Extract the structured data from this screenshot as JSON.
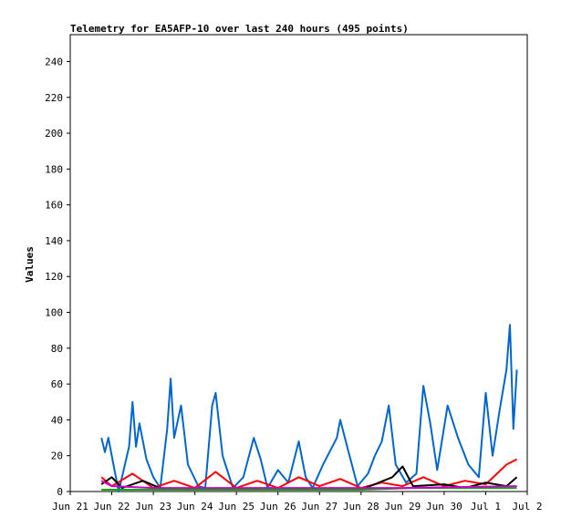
{
  "chart_data": {
    "type": "line",
    "title": "Telemetry for EA5AFP-10 over last 240 hours (495 points)",
    "xlabel": "",
    "ylabel": "Values",
    "xlim": [
      "2021-06-21T00:00",
      "2021-07-02T00:00"
    ],
    "ylim": [
      0,
      255
    ],
    "y_ticks": [
      0,
      20,
      40,
      60,
      80,
      100,
      120,
      140,
      160,
      180,
      200,
      220,
      240
    ],
    "x_tick_labels": [
      "Jun 21",
      "Jun 22",
      "Jun 23",
      "Jun 24",
      "Jun 25",
      "Jun 26",
      "Jun 27",
      "Jun 28",
      "Jun 29",
      "Jun 30",
      "Jul 1",
      "Jul 2"
    ],
    "x_ticks": [
      "2021-06-21",
      "2021-06-22",
      "2021-06-23",
      "2021-06-24",
      "2021-06-25",
      "2021-06-26",
      "2021-06-27",
      "2021-06-28",
      "2021-06-29",
      "2021-06-30",
      "2021-07-01",
      "2021-07-02"
    ],
    "grid": false,
    "legend": "none",
    "series": [
      {
        "color": "#0066cc",
        "points": [
          [
            "2021-06-21T18:00",
            30
          ],
          [
            "2021-06-21T20:00",
            22
          ],
          [
            "2021-06-21T22:00",
            30
          ],
          [
            "2021-06-22T00:00",
            20
          ],
          [
            "2021-06-22T04:00",
            0
          ],
          [
            "2021-06-22T10:00",
            25
          ],
          [
            "2021-06-22T12:00",
            50
          ],
          [
            "2021-06-22T14:00",
            25
          ],
          [
            "2021-06-22T16:00",
            38
          ],
          [
            "2021-06-22T20:00",
            18
          ],
          [
            "2021-06-23T00:00",
            8
          ],
          [
            "2021-06-23T04:00",
            2
          ],
          [
            "2021-06-23T08:00",
            35
          ],
          [
            "2021-06-23T10:00",
            63
          ],
          [
            "2021-06-23T12:00",
            30
          ],
          [
            "2021-06-23T16:00",
            48
          ],
          [
            "2021-06-23T20:00",
            15
          ],
          [
            "2021-06-24T02:00",
            3
          ],
          [
            "2021-06-24T06:00",
            2
          ],
          [
            "2021-06-24T10:00",
            48
          ],
          [
            "2021-06-24T12:00",
            55
          ],
          [
            "2021-06-24T16:00",
            20
          ],
          [
            "2021-06-24T22:00",
            2
          ],
          [
            "2021-06-25T04:00",
            8
          ],
          [
            "2021-06-25T10:00",
            30
          ],
          [
            "2021-06-25T14:00",
            18
          ],
          [
            "2021-06-25T18:00",
            2
          ],
          [
            "2021-06-26T00:00",
            12
          ],
          [
            "2021-06-26T06:00",
            5
          ],
          [
            "2021-06-26T12:00",
            28
          ],
          [
            "2021-06-26T16:00",
            8
          ],
          [
            "2021-06-26T20:00",
            2
          ],
          [
            "2021-06-27T02:00",
            15
          ],
          [
            "2021-06-27T10:00",
            30
          ],
          [
            "2021-06-27T12:00",
            40
          ],
          [
            "2021-06-27T16:00",
            25
          ],
          [
            "2021-06-27T22:00",
            3
          ],
          [
            "2021-06-28T04:00",
            10
          ],
          [
            "2021-06-28T08:00",
            20
          ],
          [
            "2021-06-28T12:00",
            28
          ],
          [
            "2021-06-28T16:00",
            48
          ],
          [
            "2021-06-28T20:00",
            15
          ],
          [
            "2021-06-29T02:00",
            5
          ],
          [
            "2021-06-29T08:00",
            10
          ],
          [
            "2021-06-29T12:00",
            59
          ],
          [
            "2021-06-29T16:00",
            38
          ],
          [
            "2021-06-29T20:00",
            12
          ],
          [
            "2021-06-30T02:00",
            48
          ],
          [
            "2021-06-30T08:00",
            30
          ],
          [
            "2021-06-30T14:00",
            15
          ],
          [
            "2021-06-30T20:00",
            8
          ],
          [
            "2021-07-01T00:00",
            55
          ],
          [
            "2021-07-01T04:00",
            20
          ],
          [
            "2021-07-01T08:00",
            45
          ],
          [
            "2021-07-01T12:00",
            68
          ],
          [
            "2021-07-01T14:00",
            93
          ],
          [
            "2021-07-01T16:00",
            35
          ],
          [
            "2021-07-01T18:00",
            68
          ]
        ]
      },
      {
        "color": "#ff0000",
        "points": [
          [
            "2021-06-21T18:00",
            8
          ],
          [
            "2021-06-22T00:00",
            3
          ],
          [
            "2021-06-22T12:00",
            10
          ],
          [
            "2021-06-23T00:00",
            2
          ],
          [
            "2021-06-23T12:00",
            6
          ],
          [
            "2021-06-24T00:00",
            2
          ],
          [
            "2021-06-24T12:00",
            11
          ],
          [
            "2021-06-25T00:00",
            2
          ],
          [
            "2021-06-25T12:00",
            6
          ],
          [
            "2021-06-26T00:00",
            2
          ],
          [
            "2021-06-26T12:00",
            8
          ],
          [
            "2021-06-27T00:00",
            3
          ],
          [
            "2021-06-27T12:00",
            7
          ],
          [
            "2021-06-28T00:00",
            2
          ],
          [
            "2021-06-28T12:00",
            5
          ],
          [
            "2021-06-29T00:00",
            3
          ],
          [
            "2021-06-29T12:00",
            8
          ],
          [
            "2021-06-30T00:00",
            3
          ],
          [
            "2021-06-30T12:00",
            6
          ],
          [
            "2021-07-01T00:00",
            4
          ],
          [
            "2021-07-01T12:00",
            15
          ],
          [
            "2021-07-01T18:00",
            18
          ]
        ]
      },
      {
        "color": "#000000",
        "points": [
          [
            "2021-06-21T18:00",
            4
          ],
          [
            "2021-06-22T00:00",
            8
          ],
          [
            "2021-06-22T06:00",
            2
          ],
          [
            "2021-06-22T18:00",
            6
          ],
          [
            "2021-06-23T06:00",
            1
          ],
          [
            "2021-06-24T00:00",
            1
          ],
          [
            "2021-06-25T00:00",
            1
          ],
          [
            "2021-06-26T00:00",
            1
          ],
          [
            "2021-06-27T00:00",
            1
          ],
          [
            "2021-06-28T00:00",
            1
          ],
          [
            "2021-06-28T18:00",
            8
          ],
          [
            "2021-06-29T00:00",
            14
          ],
          [
            "2021-06-29T06:00",
            3
          ],
          [
            "2021-06-30T00:00",
            4
          ],
          [
            "2021-06-30T12:00",
            2
          ],
          [
            "2021-07-01T00:00",
            5
          ],
          [
            "2021-07-01T12:00",
            3
          ],
          [
            "2021-07-01T18:00",
            8
          ]
        ]
      },
      {
        "color": "#00aa00",
        "points": [
          [
            "2021-06-21T18:00",
            1
          ],
          [
            "2021-06-25T00:00",
            1
          ],
          [
            "2021-06-28T00:00",
            1
          ],
          [
            "2021-06-29T06:00",
            2
          ],
          [
            "2021-07-01T18:00",
            2
          ]
        ]
      },
      {
        "color": "#cc00cc",
        "points": [
          [
            "2021-06-21T18:00",
            6
          ],
          [
            "2021-06-22T00:00",
            3
          ],
          [
            "2021-06-23T00:00",
            2
          ],
          [
            "2021-06-26T00:00",
            2
          ],
          [
            "2021-06-29T00:00",
            2
          ],
          [
            "2021-07-01T18:00",
            3
          ]
        ]
      }
    ]
  }
}
